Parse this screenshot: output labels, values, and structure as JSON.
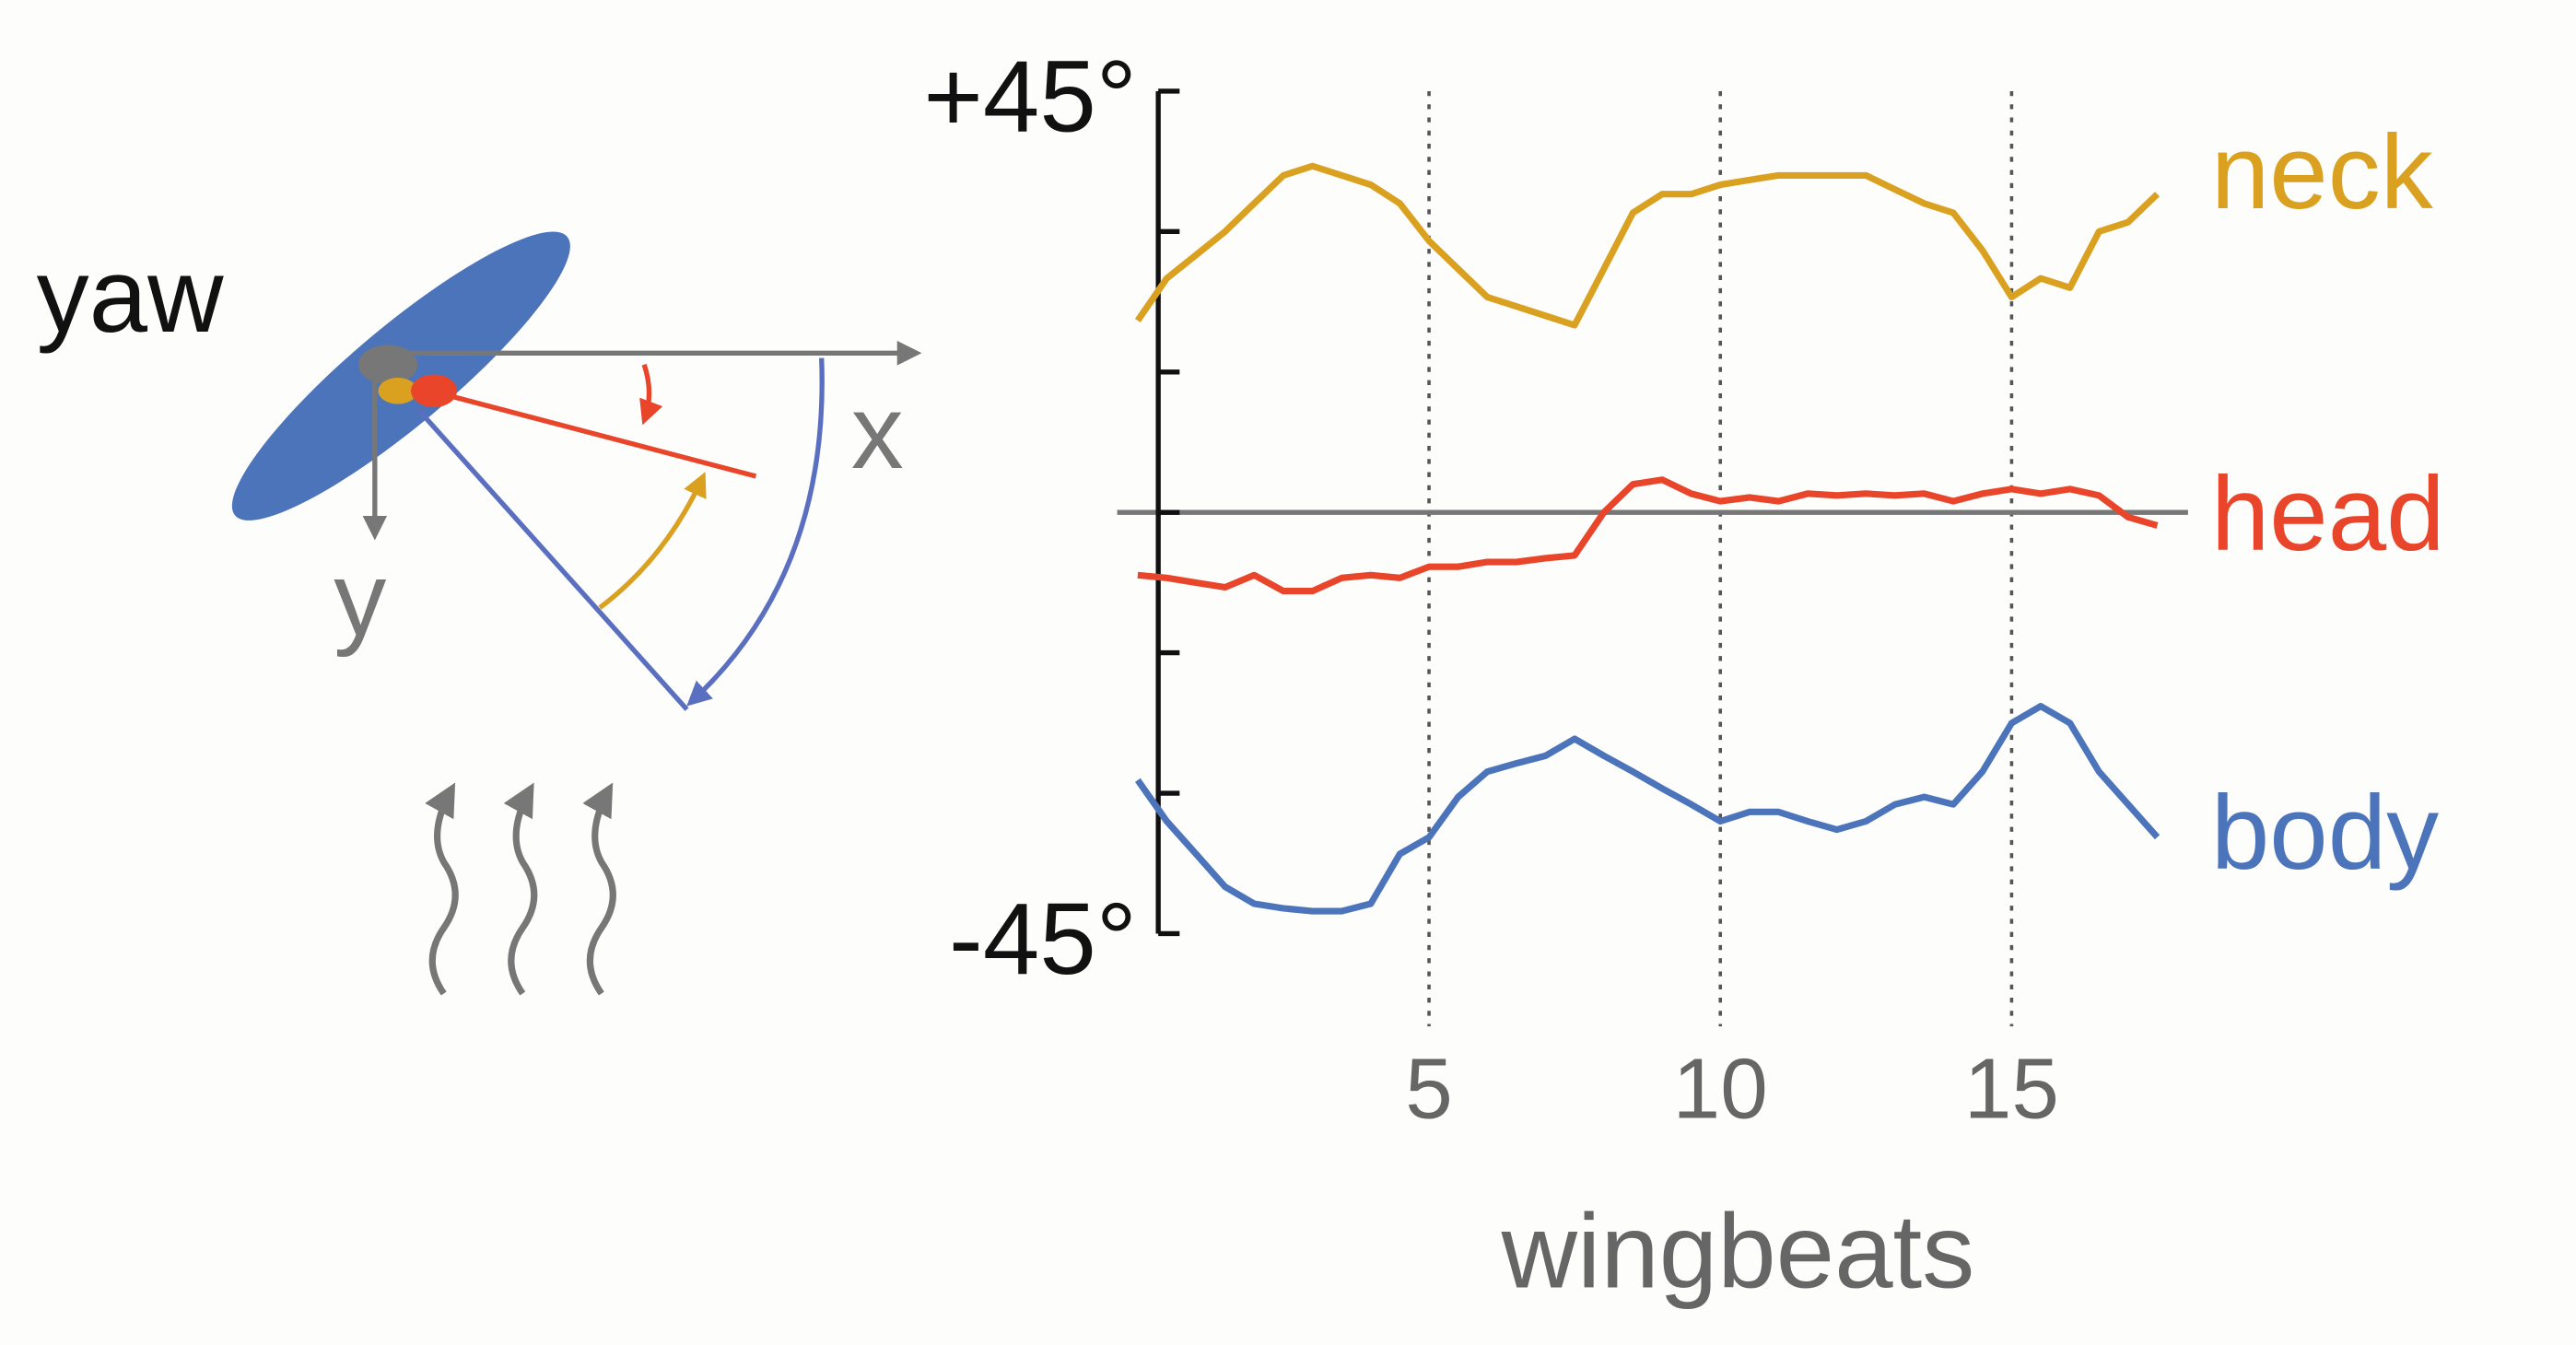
{
  "chart_data": {
    "type": "line",
    "annotations": [
      "yaw",
      "x",
      "y"
    ],
    "x_label": "wingbeats",
    "x": [
      0,
      0.5,
      1,
      1.5,
      2,
      2.5,
      3,
      3.5,
      4,
      4.5,
      5,
      5.5,
      6,
      6.5,
      7,
      7.5,
      8,
      8.5,
      9,
      9.5,
      10,
      10.5,
      11,
      11.5,
      12,
      12.5,
      13,
      13.5,
      14,
      14.5,
      15,
      15.5,
      16,
      16.5,
      17,
      17.5
    ],
    "xlim": [
      0,
      18
    ],
    "xticks": [
      5,
      10,
      15
    ],
    "ylim": [
      -45,
      45
    ],
    "yticks": [
      {
        "value": -45,
        "label": "-45°"
      },
      {
        "value": 45,
        "label": "+45°"
      }
    ],
    "yminor_ticks": [
      -30,
      -15,
      0,
      15,
      30
    ],
    "grid": true,
    "series": [
      {
        "name": "neck",
        "color": "#d9a11f",
        "values": [
          20.5,
          25,
          27.5,
          30,
          33,
          36,
          37,
          36,
          35,
          33,
          29,
          26,
          23,
          22,
          21,
          20,
          26,
          32,
          34,
          34,
          35,
          35.5,
          36,
          36,
          36,
          36,
          34.5,
          33,
          32,
          28,
          23,
          25,
          24,
          30,
          31,
          34
        ]
      },
      {
        "name": "head",
        "color": "#e8452a",
        "values": [
          -6.7,
          -7,
          -7.5,
          -8,
          -6.7,
          -8.4,
          -8.4,
          -7,
          -6.7,
          -7,
          -5.8,
          -5.8,
          -5.3,
          -5.3,
          -4.9,
          -4.6,
          0,
          3,
          3.5,
          2,
          1.2,
          1.6,
          1.2,
          2,
          1.8,
          2,
          1.8,
          2,
          1.2,
          2,
          2.5,
          2,
          2.5,
          1.8,
          -0.5,
          -1.4
        ]
      },
      {
        "name": "body",
        "color": "#4b74ba",
        "values": [
          -28.6,
          -33,
          -36.5,
          -40,
          -41.8,
          -42.3,
          -42.6,
          -42.6,
          -41.8,
          -36.5,
          -34.7,
          -30.4,
          -27.7,
          -26.8,
          -26,
          -24.2,
          -26,
          -27.7,
          -29.5,
          -31.2,
          -33,
          -32,
          -32,
          -33,
          -33.9,
          -33,
          -31.2,
          -30.4,
          -31.2,
          -27.7,
          -22.5,
          -20.7,
          -22.5,
          -27.7,
          -31.2,
          -34.7
        ]
      }
    ]
  }
}
